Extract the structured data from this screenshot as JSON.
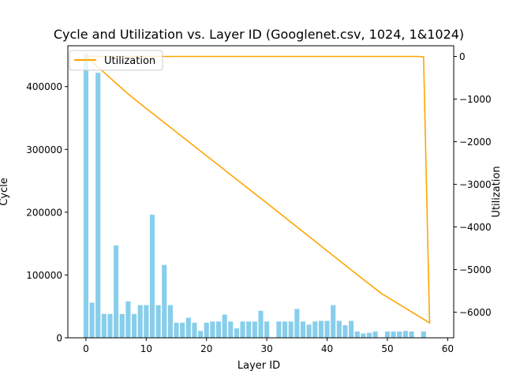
{
  "chart_data": {
    "type": "bar",
    "title": "Cycle and Utilization vs. Layer ID (Googlenet.csv, 1024, 1&1024)",
    "xlabel": "Layer ID",
    "ylabel": "Cycle",
    "y2label": "Utilization",
    "xlim": [
      -3,
      61
    ],
    "ylim": [
      0,
      465000
    ],
    "y2lim": [
      -6600,
      250
    ],
    "x_ticks": [
      0,
      10,
      20,
      30,
      40,
      50,
      60
    ],
    "y_ticks": [
      0,
      100000,
      200000,
      300000,
      400000
    ],
    "y2_ticks": [
      0,
      -1000,
      -2000,
      -3000,
      -4000,
      -5000,
      -6000
    ],
    "legend": {
      "placement": "upper-left",
      "entries": [
        "Utilization"
      ]
    },
    "colors": {
      "bars": "#87ceeb",
      "line": "#ffa500"
    },
    "series": [
      {
        "axis": "left",
        "kind": "bar",
        "x": [
          0,
          1,
          2,
          3,
          4,
          5,
          6,
          7,
          8,
          9,
          10,
          11,
          12,
          13,
          14,
          15,
          16,
          17,
          18,
          19,
          20,
          21,
          22,
          23,
          24,
          25,
          26,
          27,
          28,
          29,
          30,
          31,
          32,
          33,
          34,
          35,
          36,
          37,
          38,
          39,
          40,
          41,
          42,
          43,
          44,
          45,
          46,
          47,
          48,
          49,
          50,
          51,
          52,
          53,
          54,
          55,
          56,
          57
        ],
        "values": [
          452000,
          56000,
          422000,
          38000,
          38000,
          147000,
          38000,
          58000,
          38000,
          52000,
          52000,
          196000,
          52000,
          116000,
          52000,
          24000,
          24000,
          32000,
          24000,
          11000,
          24000,
          26000,
          26000,
          37000,
          26000,
          15000,
          26000,
          26000,
          26000,
          43000,
          26000,
          0,
          26000,
          26000,
          26000,
          46000,
          26000,
          21000,
          26000,
          27000,
          27000,
          52000,
          27000,
          20000,
          27000,
          10000,
          7000,
          8000,
          10000,
          0,
          10000,
          10000,
          10000,
          11000,
          10000,
          0,
          10000,
          0
        ]
      },
      {
        "name": "Utilization",
        "axis": "right",
        "kind": "line",
        "x": [
          0,
          7,
          10,
          20,
          30,
          40,
          45,
          48,
          49,
          50,
          52,
          53,
          54,
          55,
          56,
          57,
          49,
          45,
          40,
          30,
          20,
          10,
          7,
          0
        ],
        "values": [
          0,
          0,
          0,
          0,
          0,
          0,
          0,
          0,
          0,
          0,
          0,
          0,
          0,
          0,
          -10,
          -6250,
          -5560,
          -5120,
          -4560,
          -3440,
          -2330,
          -1220,
          -880,
          0
        ]
      }
    ]
  }
}
